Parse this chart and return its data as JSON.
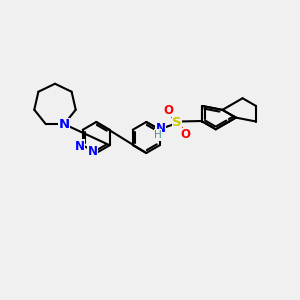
{
  "background_color": "#f0f0f0",
  "bond_color": "#000000",
  "N_color": "#0000ff",
  "O_color": "#ff0000",
  "S_color": "#cccc00",
  "H_color": "#4a9090",
  "line_width": 1.5,
  "font_size": 8.5,
  "fig_width": 3.0,
  "fig_height": 3.0,
  "dpi": 100,
  "xlim": [
    0,
    12
  ],
  "ylim": [
    0,
    10
  ]
}
